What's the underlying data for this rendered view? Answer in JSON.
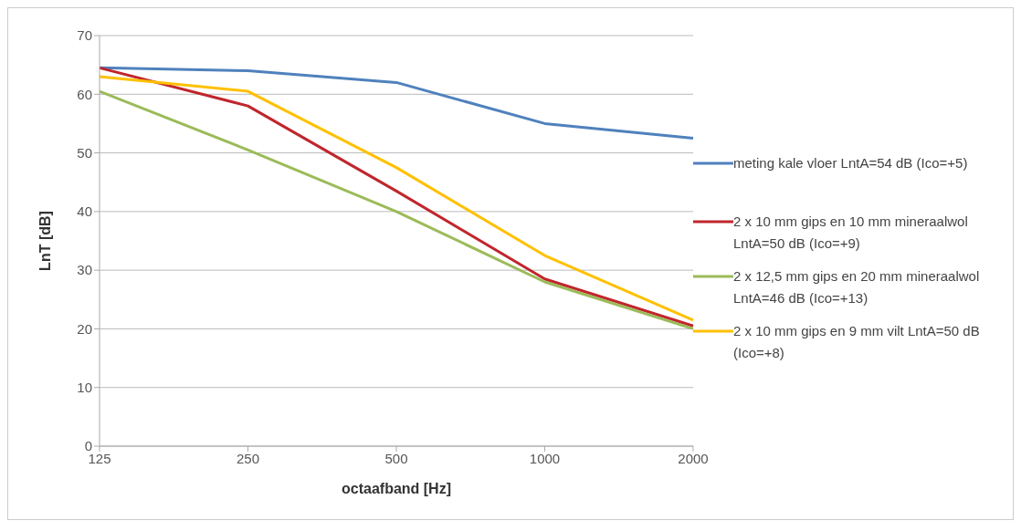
{
  "chart_data": {
    "type": "line",
    "xlabel": "octaafband [Hz]",
    "ylabel": "LnT [dB]",
    "categories": [
      "125",
      "250",
      "500",
      "1000",
      "2000"
    ],
    "series": [
      {
        "name": "meting kale vloer LntA=54 dB (Ico=+5)",
        "color": "#4f81bd",
        "values": [
          64.5,
          64,
          62,
          55,
          52.5
        ]
      },
      {
        "name": "2 x 10 mm gips en 10 mm mineraalwol LntA=50 dB (Ico=+9)",
        "color": "#c0262c",
        "values": [
          64.5,
          58,
          43.5,
          28.5,
          20.5
        ]
      },
      {
        "name": "2 x 12,5 mm gips en 20 mm mineraalwol LntA=46 dB (Ico=+13)",
        "color": "#9bbb59",
        "values": [
          60.5,
          50.5,
          40,
          28,
          20
        ]
      },
      {
        "name": "2 x 10 mm gips en 9 mm vilt LntA=50 dB (Ico=+8)",
        "color": "#ffc000",
        "values": [
          63,
          60.5,
          47.5,
          32.5,
          21.5
        ]
      }
    ],
    "ylim": [
      0,
      70
    ],
    "yticks": [
      0,
      10,
      20,
      30,
      40,
      50,
      60,
      70
    ],
    "grid": "y",
    "legend": "right",
    "marker": "none",
    "line_style": "solid"
  }
}
